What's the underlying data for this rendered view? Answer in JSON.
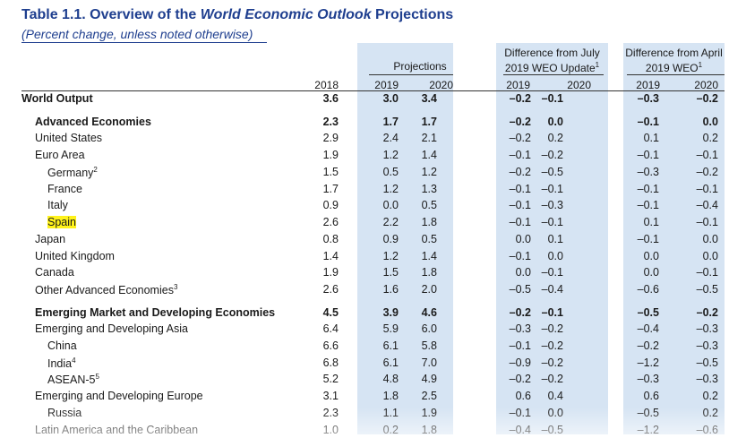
{
  "header": {
    "title_prefix": "Table 1.1. Overview of the ",
    "title_italic": "World Economic Outlook",
    "title_suffix": " Projections",
    "subtitle": "(Percent change, unless noted otherwise)"
  },
  "columns": {
    "projections_label": "Projections",
    "diff_july_line1": "Difference from July",
    "diff_july_line2": "2019 WEO Update",
    "diff_july_sup": "1",
    "diff_april_line1": "Difference from April",
    "diff_april_line2": "2019 WEO",
    "diff_april_sup": "1",
    "years": [
      "2018",
      "2019",
      "2020",
      "2019",
      "2020",
      "2019",
      "2020"
    ]
  },
  "rows": [
    {
      "label": "World Output",
      "sup": "",
      "indent": 0,
      "bold": true,
      "highlight": false,
      "values": [
        "3.6",
        "3.0",
        "3.4",
        "–0.2",
        "–0.1",
        "–0.3",
        "–0.2"
      ]
    },
    {
      "label": "Advanced Economies",
      "sup": "",
      "indent": 1,
      "bold": true,
      "highlight": false,
      "values": [
        "2.3",
        "1.7",
        "1.7",
        "–0.2",
        "0.0",
        "–0.1",
        "0.0"
      ]
    },
    {
      "label": "United States",
      "sup": "",
      "indent": 1,
      "bold": false,
      "highlight": false,
      "values": [
        "2.9",
        "2.4",
        "2.1",
        "–0.2",
        "0.2",
        "0.1",
        "0.2"
      ]
    },
    {
      "label": "Euro Area",
      "sup": "",
      "indent": 1,
      "bold": false,
      "highlight": false,
      "values": [
        "1.9",
        "1.2",
        "1.4",
        "–0.1",
        "–0.2",
        "–0.1",
        "–0.1"
      ]
    },
    {
      "label": "Germany",
      "sup": "2",
      "indent": 2,
      "bold": false,
      "highlight": false,
      "values": [
        "1.5",
        "0.5",
        "1.2",
        "–0.2",
        "–0.5",
        "–0.3",
        "–0.2"
      ]
    },
    {
      "label": "France",
      "sup": "",
      "indent": 2,
      "bold": false,
      "highlight": false,
      "values": [
        "1.7",
        "1.2",
        "1.3",
        "–0.1",
        "–0.1",
        "–0.1",
        "–0.1"
      ]
    },
    {
      "label": "Italy",
      "sup": "",
      "indent": 2,
      "bold": false,
      "highlight": false,
      "values": [
        "0.9",
        "0.0",
        "0.5",
        "–0.1",
        "–0.3",
        "–0.1",
        "–0.4"
      ]
    },
    {
      "label": "Spain",
      "sup": "",
      "indent": 2,
      "bold": false,
      "highlight": true,
      "values": [
        "2.6",
        "2.2",
        "1.8",
        "–0.1",
        "–0.1",
        "0.1",
        "–0.1"
      ]
    },
    {
      "label": "Japan",
      "sup": "",
      "indent": 1,
      "bold": false,
      "highlight": false,
      "values": [
        "0.8",
        "0.9",
        "0.5",
        "0.0",
        "0.1",
        "–0.1",
        "0.0"
      ]
    },
    {
      "label": "United Kingdom",
      "sup": "",
      "indent": 1,
      "bold": false,
      "highlight": false,
      "values": [
        "1.4",
        "1.2",
        "1.4",
        "–0.1",
        "0.0",
        "0.0",
        "0.0"
      ]
    },
    {
      "label": "Canada",
      "sup": "",
      "indent": 1,
      "bold": false,
      "highlight": false,
      "values": [
        "1.9",
        "1.5",
        "1.8",
        "0.0",
        "–0.1",
        "0.0",
        "–0.1"
      ]
    },
    {
      "label": "Other Advanced Economies",
      "sup": "3",
      "indent": 1,
      "bold": false,
      "highlight": false,
      "values": [
        "2.6",
        "1.6",
        "2.0",
        "–0.5",
        "–0.4",
        "–0.6",
        "–0.5"
      ]
    },
    {
      "label": "Emerging Market and Developing Economies",
      "sup": "",
      "indent": 1,
      "bold": true,
      "highlight": false,
      "values": [
        "4.5",
        "3.9",
        "4.6",
        "–0.2",
        "–0.1",
        "–0.5",
        "–0.2"
      ]
    },
    {
      "label": "Emerging and Developing Asia",
      "sup": "",
      "indent": 1,
      "bold": false,
      "highlight": false,
      "values": [
        "6.4",
        "5.9",
        "6.0",
        "–0.3",
        "–0.2",
        "–0.4",
        "–0.3"
      ]
    },
    {
      "label": "China",
      "sup": "",
      "indent": 2,
      "bold": false,
      "highlight": false,
      "values": [
        "6.6",
        "6.1",
        "5.8",
        "–0.1",
        "–0.2",
        "–0.2",
        "–0.3"
      ]
    },
    {
      "label": "India",
      "sup": "4",
      "indent": 2,
      "bold": false,
      "highlight": false,
      "values": [
        "6.8",
        "6.1",
        "7.0",
        "–0.9",
        "–0.2",
        "–1.2",
        "–0.5"
      ]
    },
    {
      "label": "ASEAN-5",
      "sup": "5",
      "indent": 2,
      "bold": false,
      "highlight": false,
      "values": [
        "5.2",
        "4.8",
        "4.9",
        "–0.2",
        "–0.2",
        "–0.3",
        "–0.3"
      ]
    },
    {
      "label": "Emerging and Developing Europe",
      "sup": "",
      "indent": 1,
      "bold": false,
      "highlight": false,
      "values": [
        "3.1",
        "1.8",
        "2.5",
        "0.6",
        "0.4",
        "0.6",
        "0.2"
      ]
    },
    {
      "label": "Russia",
      "sup": "",
      "indent": 2,
      "bold": false,
      "highlight": false,
      "values": [
        "2.3",
        "1.1",
        "1.9",
        "–0.1",
        "0.0",
        "–0.5",
        "0.2"
      ]
    },
    {
      "label": "Latin America and the Caribbean",
      "sup": "",
      "indent": 1,
      "bold": false,
      "highlight": false,
      "values": [
        "1.0",
        "0.2",
        "1.8",
        "–0.4",
        "–0.5",
        "–1.2",
        "–0.6"
      ]
    }
  ]
}
